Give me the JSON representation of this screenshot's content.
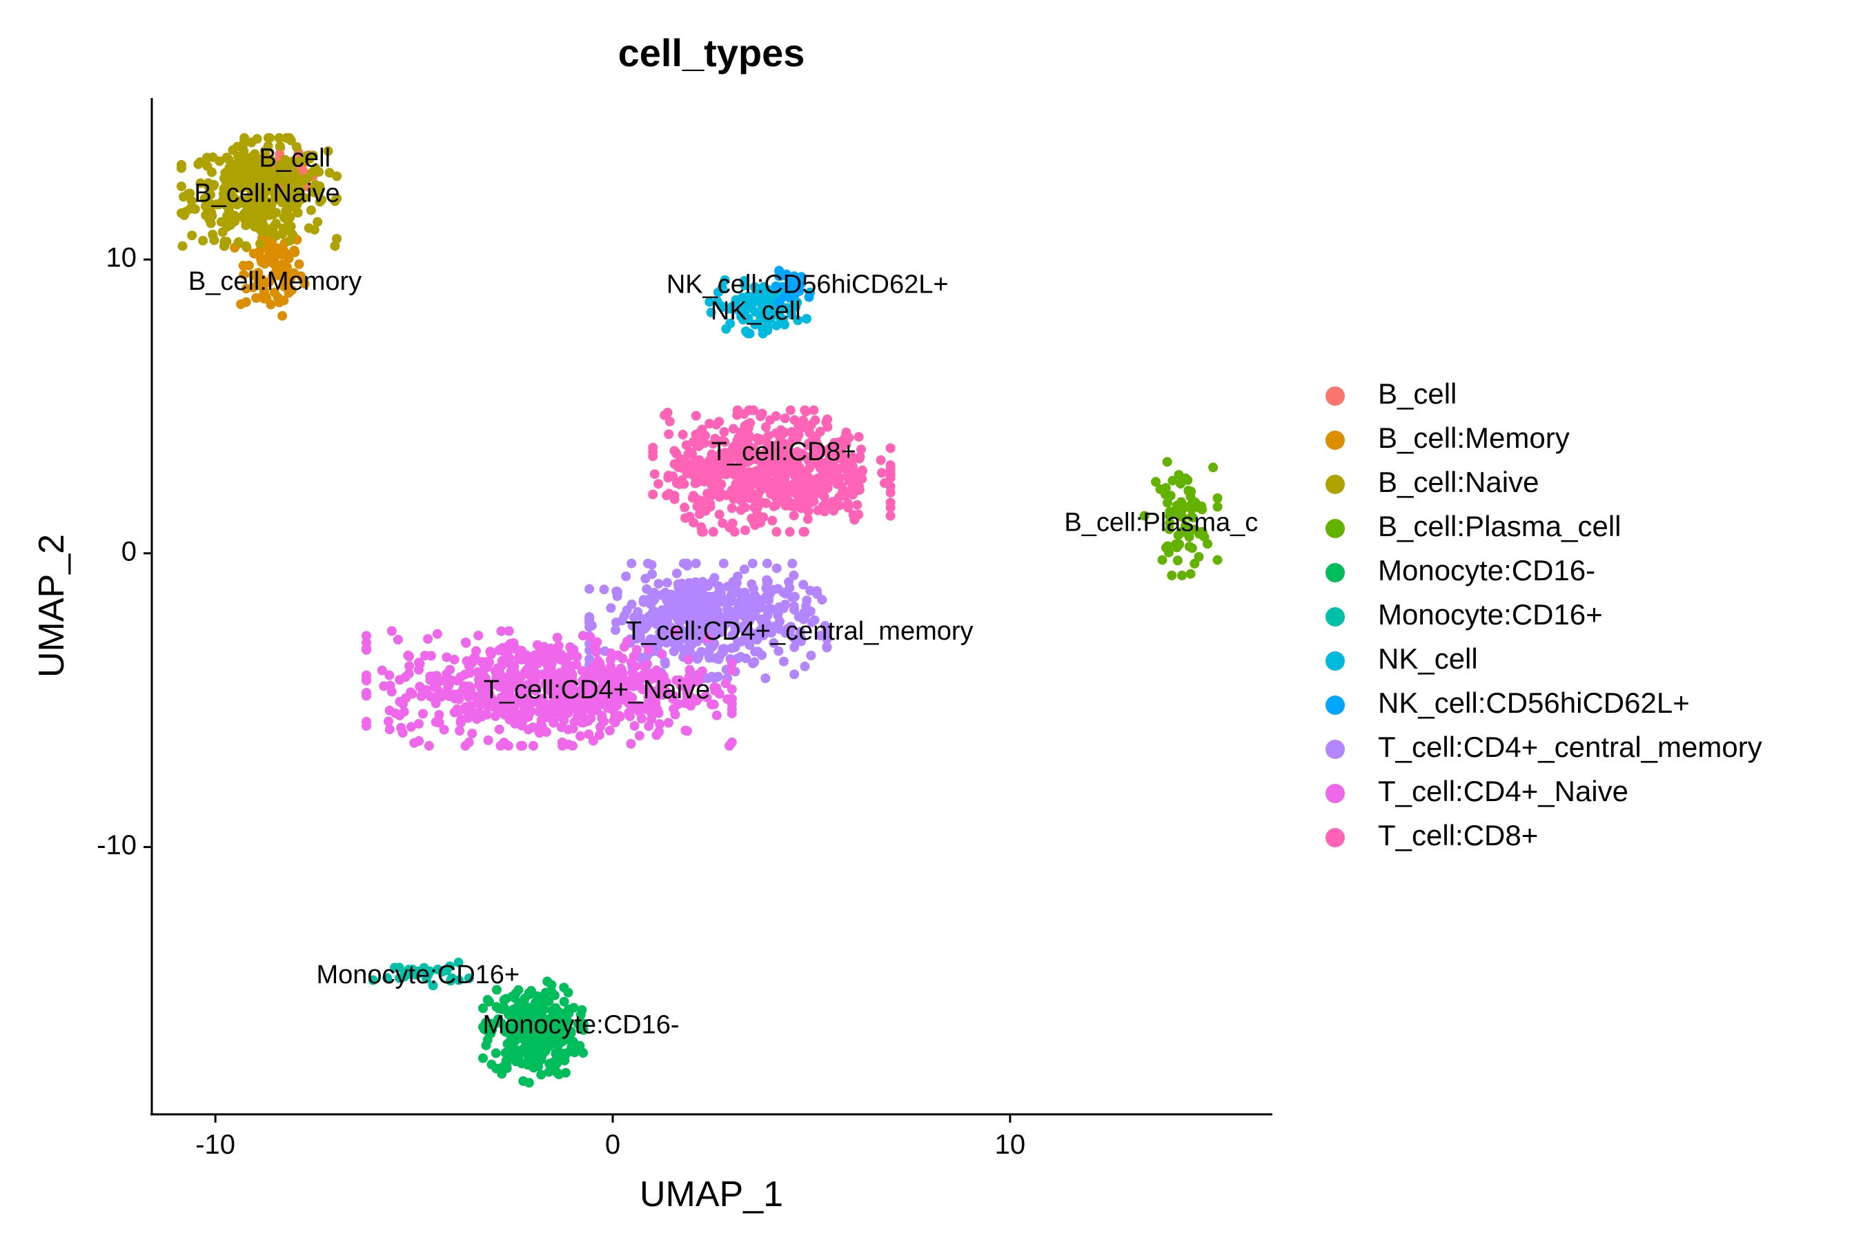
{
  "chart_data": {
    "type": "scatter",
    "title": "cell_types",
    "xlabel": "UMAP_1",
    "ylabel": "UMAP_2",
    "xlim": [
      -11.6,
      16.6
    ],
    "ylim": [
      -19.1,
      15.5
    ],
    "xticks": [
      -10,
      0,
      10
    ],
    "yticks": [
      -10,
      0,
      10
    ],
    "grid": false,
    "legend_position": "right",
    "series": [
      {
        "name": "B_cell",
        "color": "#F8766D",
        "center": [
          -8.2,
          13.1
        ],
        "spread": [
          0.45,
          0.35
        ],
        "n": 40
      },
      {
        "name": "B_cell:Memory",
        "color": "#DB8E00",
        "center": [
          -8.6,
          9.6
        ],
        "spread": [
          0.4,
          0.75
        ],
        "n": 90
      },
      {
        "name": "B_cell:Naive",
        "color": "#AEA200",
        "center": [
          -8.9,
          12.3
        ],
        "spread": [
          0.85,
          0.8
        ],
        "n": 380
      },
      {
        "name": "B_cell:Plasma_cell",
        "color": "#64B200",
        "center": [
          14.3,
          1.2
        ],
        "spread": [
          0.4,
          0.85
        ],
        "n": 70
      },
      {
        "name": "Monocyte:CD16-",
        "color": "#00BD5C",
        "center": [
          -2.0,
          -16.3
        ],
        "spread": [
          0.55,
          0.75
        ],
        "n": 320
      },
      {
        "name": "Monocyte:CD16+",
        "color": "#00C1A7",
        "center": [
          -4.8,
          -14.3
        ],
        "spread": [
          0.55,
          0.18
        ],
        "n": 30
      },
      {
        "name": "NK_cell",
        "color": "#00BADE",
        "center": [
          3.7,
          8.4
        ],
        "spread": [
          0.55,
          0.4
        ],
        "n": 110
      },
      {
        "name": "NK_cell:CD56hiCD62L+",
        "color": "#00A6FF",
        "center": [
          4.6,
          9.1
        ],
        "spread": [
          0.3,
          0.25
        ],
        "n": 25
      },
      {
        "name": "T_cell:CD4+_central_memory",
        "color": "#B385FF",
        "center": [
          2.4,
          -2.3
        ],
        "spread": [
          1.3,
          0.85
        ],
        "n": 480
      },
      {
        "name": "T_cell:CD4+_Naive",
        "color": "#EF67EB",
        "center": [
          -1.6,
          -4.6
        ],
        "spread": [
          2.0,
          0.85
        ],
        "n": 700
      },
      {
        "name": "T_cell:CD8+",
        "color": "#FF63B6",
        "center": [
          4.0,
          2.8
        ],
        "spread": [
          1.3,
          0.9
        ],
        "n": 620
      }
    ],
    "cluster_labels": [
      {
        "text": "B_cell",
        "x": -8.0,
        "y": 13.4
      },
      {
        "text": "B_cell:Naive",
        "x": -8.7,
        "y": 12.2
      },
      {
        "text": "B_cell:Memory",
        "x": -8.5,
        "y": 9.2
      },
      {
        "text": "NK_cell:CD56hiCD62L+",
        "x": 4.9,
        "y": 9.1
      },
      {
        "text": "NK_cell",
        "x": 3.6,
        "y": 8.2
      },
      {
        "text": "T_cell:CD8+",
        "x": 4.3,
        "y": 3.4
      },
      {
        "text": "B_cell:Plasma_c",
        "x": 13.8,
        "y": 1.0
      },
      {
        "text": "T_cell:CD4+_central_memory",
        "x": 4.7,
        "y": -2.7
      },
      {
        "text": "T_cell:CD4+_Naive",
        "x": -0.4,
        "y": -4.7
      },
      {
        "text": "Monocyte:CD16+",
        "x": -4.9,
        "y": -14.4
      },
      {
        "text": "Monocyte:CD16-",
        "x": -0.8,
        "y": -16.1
      }
    ]
  }
}
